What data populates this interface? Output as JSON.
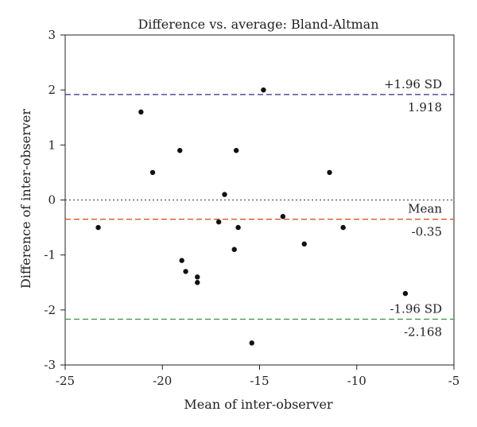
{
  "chart_data": {
    "type": "scatter",
    "title": "Difference vs. average: Bland-Altman",
    "xlabel": "Mean of inter-observer",
    "ylabel": "Difference of inter-observer",
    "xlim": [
      -25,
      -5
    ],
    "ylim": [
      -3,
      3
    ],
    "x_ticks": [
      -25,
      -20,
      -15,
      -10,
      -5
    ],
    "y_ticks": [
      3,
      2,
      1,
      0,
      -1,
      -2,
      -3
    ],
    "x_tick_labels": [
      "-25",
      "-20",
      "-15",
      "-10",
      "-5"
    ],
    "y_tick_labels": [
      "3",
      "2",
      "1",
      "0",
      "-1",
      "-2",
      "-3"
    ],
    "grid": false,
    "points": [
      {
        "x": -23.3,
        "y": -0.5
      },
      {
        "x": -21.1,
        "y": 1.6
      },
      {
        "x": -20.5,
        "y": 0.5
      },
      {
        "x": -19.1,
        "y": 0.9
      },
      {
        "x": -19.0,
        "y": -1.1
      },
      {
        "x": -18.8,
        "y": -1.3
      },
      {
        "x": -18.2,
        "y": -1.4
      },
      {
        "x": -18.2,
        "y": -1.5
      },
      {
        "x": -17.1,
        "y": -0.4
      },
      {
        "x": -16.8,
        "y": 0.1
      },
      {
        "x": -16.3,
        "y": -0.9
      },
      {
        "x": -16.2,
        "y": 0.9
      },
      {
        "x": -16.1,
        "y": -0.5
      },
      {
        "x": -15.4,
        "y": -2.6
      },
      {
        "x": -14.8,
        "y": 2.0
      },
      {
        "x": -13.8,
        "y": -0.3
      },
      {
        "x": -12.7,
        "y": -0.8
      },
      {
        "x": -11.4,
        "y": 0.5
      },
      {
        "x": -10.7,
        "y": -0.5
      },
      {
        "x": -7.5,
        "y": -1.7
      }
    ],
    "reference_lines": [
      {
        "y": 1.918,
        "label": "+1.96 SD",
        "value_label": "1.918",
        "color": "#2e2e8a",
        "style": "dashed"
      },
      {
        "y": 0,
        "label": "",
        "value_label": "",
        "color": "#555555",
        "style": "dotted"
      },
      {
        "y": -0.35,
        "label": "Mean",
        "value_label": "-0.35",
        "color": "#d9532c",
        "style": "dashed"
      },
      {
        "y": -2.168,
        "label": "-1.96 SD",
        "value_label": "-2.168",
        "color": "#4c9a4c",
        "style": "dashed"
      }
    ],
    "point_color": "#111111"
  }
}
